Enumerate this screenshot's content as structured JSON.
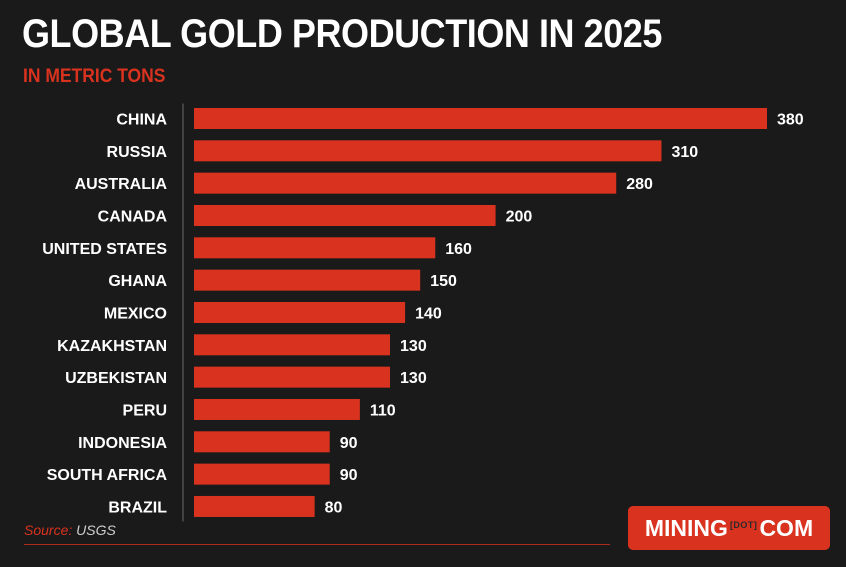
{
  "header": {
    "title": "GLOBAL GOLD PRODUCTION IN 2025",
    "subtitle": "IN METRIC TONS"
  },
  "footer": {
    "source_label": "Source:",
    "source_name": "USGS",
    "logo_left": "MINING",
    "logo_mid": "[DOT]",
    "logo_right": "COM"
  },
  "colors": {
    "background": "#1a1a1a",
    "bar": "#d9321f",
    "text": "#ffffff"
  },
  "chart_data": {
    "type": "bar",
    "orientation": "horizontal",
    "title": "GLOBAL GOLD PRODUCTION IN 2025",
    "subtitle": "IN METRIC TONS",
    "categories": [
      "CHINA",
      "RUSSIA",
      "AUSTRALIA",
      "CANADA",
      "UNITED STATES",
      "GHANA",
      "MEXICO",
      "KAZAKHSTAN",
      "UZBEKISTAN",
      "PERU",
      "INDONESIA",
      "SOUTH AFRICA",
      "BRAZIL"
    ],
    "values": [
      380,
      310,
      280,
      200,
      160,
      150,
      140,
      130,
      130,
      110,
      90,
      90,
      80
    ],
    "xlim": [
      0,
      380
    ],
    "grid": false,
    "legend": "none",
    "data_labels": true
  }
}
